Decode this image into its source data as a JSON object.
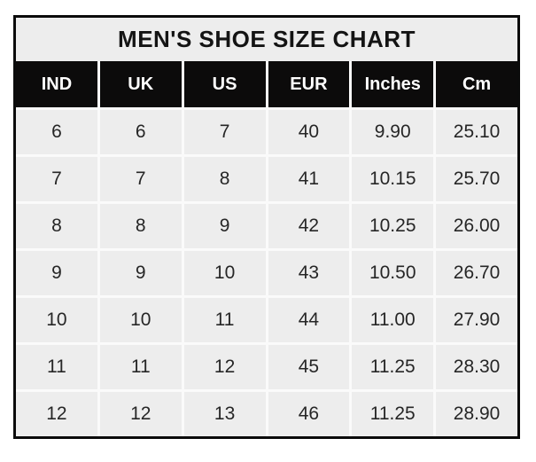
{
  "title": "MEN'S SHOE SIZE CHART",
  "colors": {
    "border": "#0b0b0b",
    "header_bg": "#0c0b0b",
    "header_text": "#ffffff",
    "title_bg": "#ededed",
    "cell_bg": "#ededed",
    "cell_text": "#262626",
    "page_bg": "#ffffff"
  },
  "chart_data": {
    "type": "table",
    "title": "MEN'S SHOE SIZE CHART",
    "columns": [
      "IND",
      "UK",
      "US",
      "EUR",
      "Inches",
      "Cm"
    ],
    "rows": [
      [
        "6",
        "6",
        "7",
        "40",
        "9.90",
        "25.10"
      ],
      [
        "7",
        "7",
        "8",
        "41",
        "10.15",
        "25.70"
      ],
      [
        "8",
        "8",
        "9",
        "42",
        "10.25",
        "26.00"
      ],
      [
        "9",
        "9",
        "10",
        "43",
        "10.50",
        "26.70"
      ],
      [
        "10",
        "10",
        "11",
        "44",
        "11.00",
        "27.90"
      ],
      [
        "11",
        "11",
        "12",
        "45",
        "11.25",
        "28.30"
      ],
      [
        "12",
        "12",
        "13",
        "46",
        "11.25",
        "28.90"
      ]
    ],
    "layout": {
      "header_position": "top",
      "gridlines": "light gaps between cells",
      "outer_border": true
    }
  }
}
